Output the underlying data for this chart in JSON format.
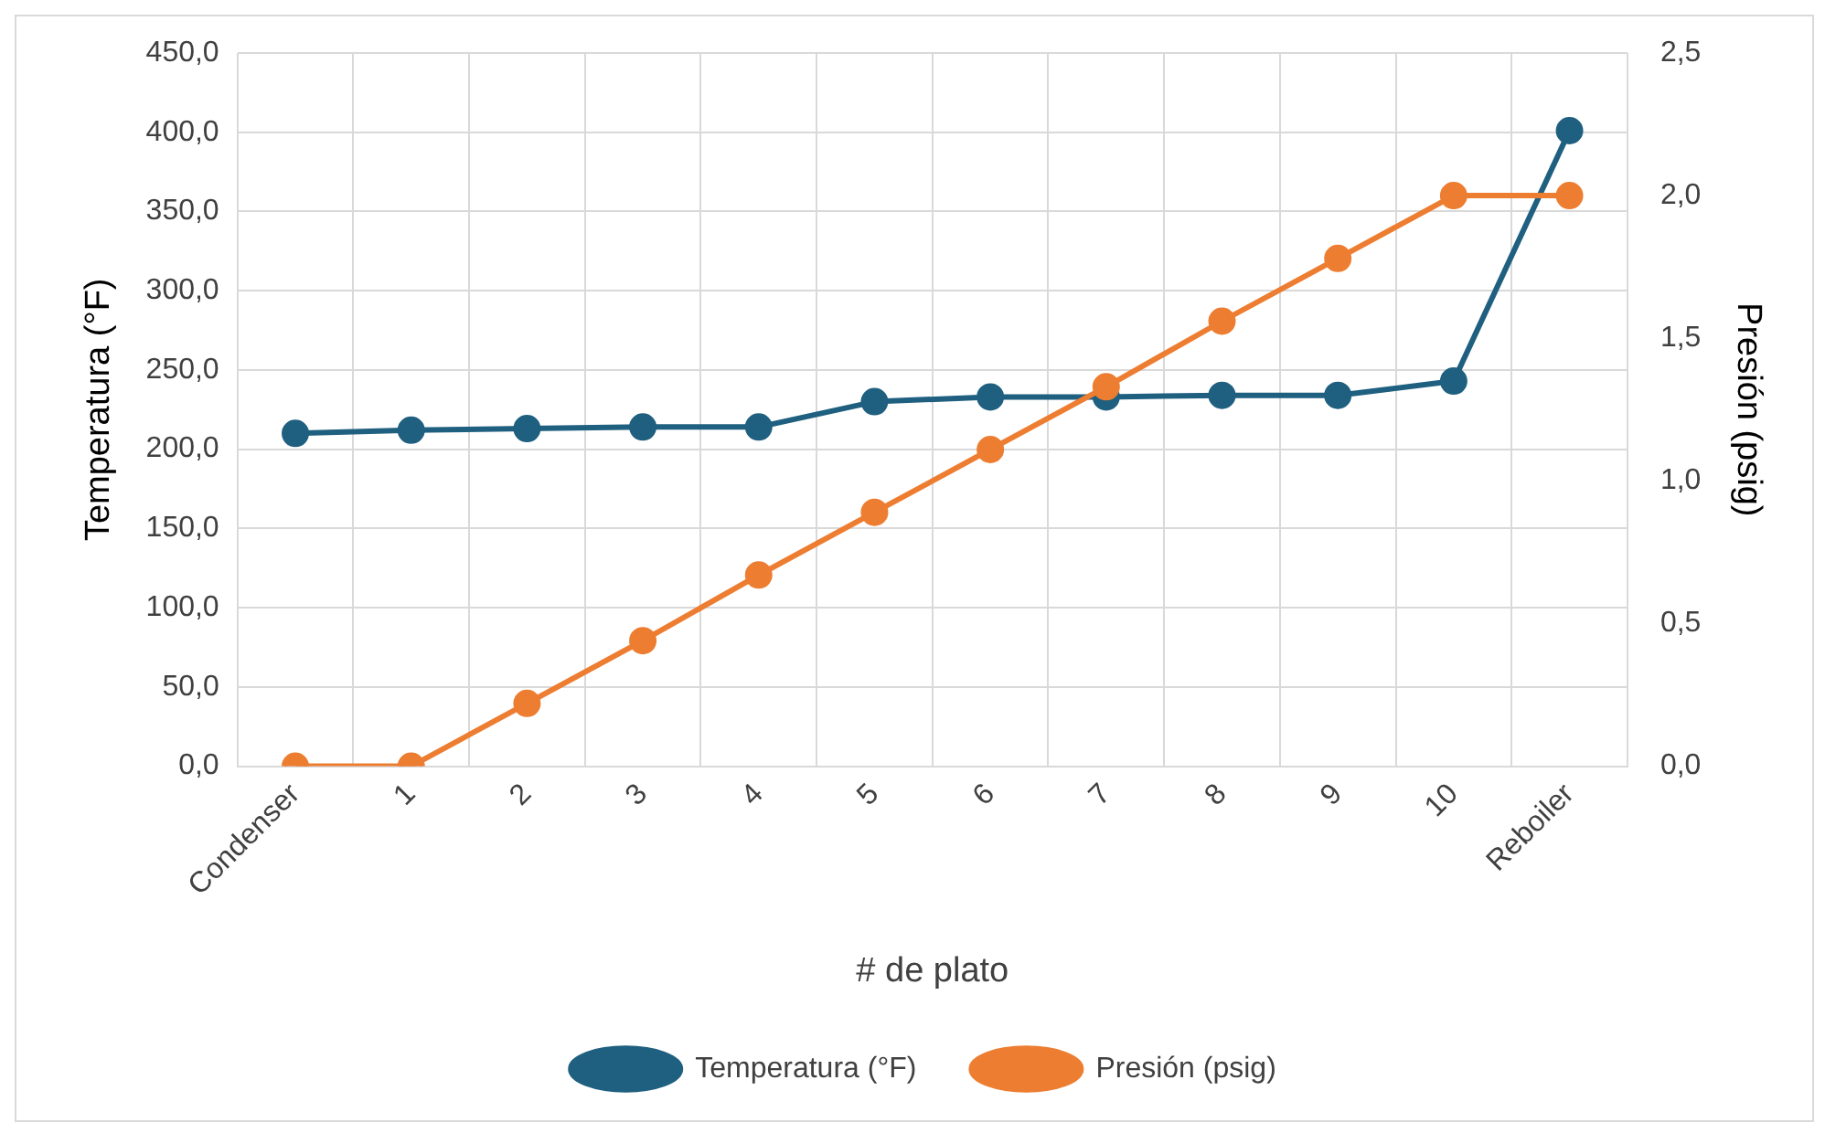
{
  "chart_data": {
    "type": "line",
    "xlabel": "# de plato",
    "ylabel": "Temperatura (°F)",
    "y2label": "Presión (psig)",
    "categories": [
      "Condenser",
      "1",
      "2",
      "3",
      "4",
      "5",
      "6",
      "7",
      "8",
      "9",
      "10",
      "Reboiler"
    ],
    "series": [
      {
        "name": "Temperatura (°F)",
        "color": "#1f5f7f",
        "values": [
          210,
          212,
          213,
          214,
          214,
          230,
          233,
          233,
          234,
          234,
          243,
          401
        ]
      },
      {
        "name": "Presión (psig)",
        "color": "#ed7d31",
        "axis": "y2",
        "values": [
          0,
          0,
          0.22,
          0.44,
          0.67,
          0.89,
          1.11,
          1.33,
          1.56,
          1.78,
          2.0,
          2.0
        ]
      }
    ],
    "ylim": [
      0,
      450
    ],
    "yticks": [
      {
        "value": 0,
        "label": "0,0"
      },
      {
        "value": 50,
        "label": "50,0"
      },
      {
        "value": 100,
        "label": "100,0"
      },
      {
        "value": 150,
        "label": "150,0"
      },
      {
        "value": 200,
        "label": "200,0"
      },
      {
        "value": 250,
        "label": "250,0"
      },
      {
        "value": 300,
        "label": "300,0"
      },
      {
        "value": 350,
        "label": "350,0"
      },
      {
        "value": 400,
        "label": "400,0"
      },
      {
        "value": 450,
        "label": "450,0"
      }
    ],
    "y2lim": [
      0,
      2.5
    ],
    "y2ticks": [
      {
        "value": 0,
        "label": "0,0"
      },
      {
        "value": 0.5,
        "label": "0,5"
      },
      {
        "value": 1,
        "label": "1,0"
      },
      {
        "value": 1.5,
        "label": "1,5"
      },
      {
        "value": 2,
        "label": "2,0"
      },
      {
        "value": 2.5,
        "label": "2,5"
      }
    ],
    "grid": true,
    "legend": "bottom",
    "marker": "circle",
    "line_style": "solid"
  }
}
